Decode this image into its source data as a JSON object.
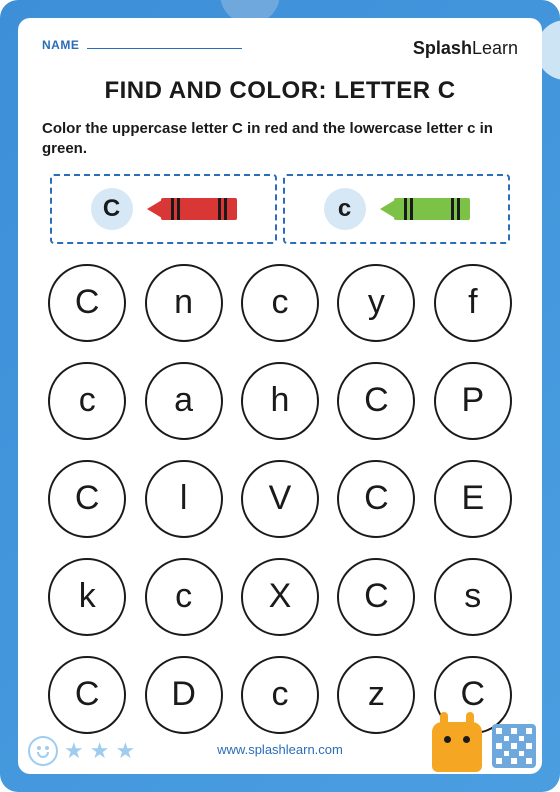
{
  "header": {
    "name_label": "NAME",
    "logo_bold": "Splash",
    "logo_thin": "Learn"
  },
  "title": "FIND AND COLOR: LETTER C",
  "instructions": "Color the uppercase letter C in red and the lowercase letter c in green.",
  "legend": {
    "uppercase": {
      "letter": "C",
      "crayon_color": "#d93636"
    },
    "lowercase": {
      "letter": "c",
      "crayon_color": "#7cc247"
    }
  },
  "grid": {
    "rows": 5,
    "cols": 5,
    "letters": [
      "C",
      "n",
      "c",
      "y",
      "f",
      "c",
      "a",
      "h",
      "C",
      "P",
      "C",
      "l",
      "V",
      "C",
      "E",
      "k",
      "c",
      "X",
      "C",
      "s",
      "C",
      "D",
      "c",
      "z",
      "C"
    ]
  },
  "footer": {
    "url": "www.splashlearn.com"
  },
  "colors": {
    "frame": "#3d8fd8",
    "accent": "#2a6db8",
    "legend_circle_bg": "#d6e8f5",
    "text": "#1a1a1a"
  },
  "typography": {
    "title_fontsize": 24,
    "instructions_fontsize": 15,
    "letter_fontsize": 34,
    "legend_letter_fontsize": 24
  }
}
